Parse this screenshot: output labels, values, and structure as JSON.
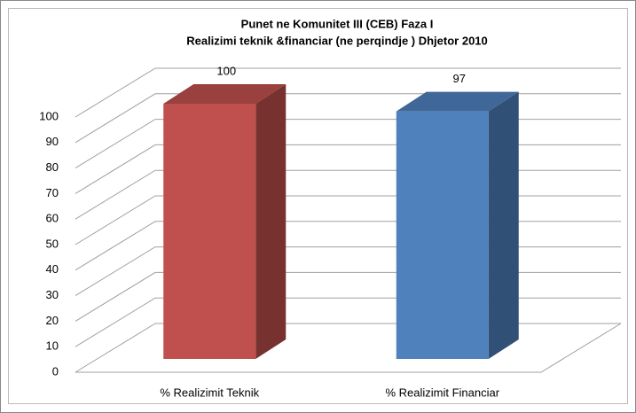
{
  "chart_data": {
    "type": "bar3d",
    "title": "Punet ne Komunitet III (CEB)    Faza I",
    "subtitle": "Realizimi  teknik &financiar  (ne perqindje )  Dhjetor 2010",
    "categories": [
      "%  Realizimit Teknik",
      "%  Realizimit Financiar"
    ],
    "values": [
      100,
      97
    ],
    "colors": [
      "#c0504d",
      "#4f81bd"
    ],
    "ylim": [
      0,
      100
    ],
    "yticks": [
      0,
      10,
      20,
      30,
      40,
      50,
      60,
      70,
      80,
      90,
      100
    ],
    "grid": true
  }
}
